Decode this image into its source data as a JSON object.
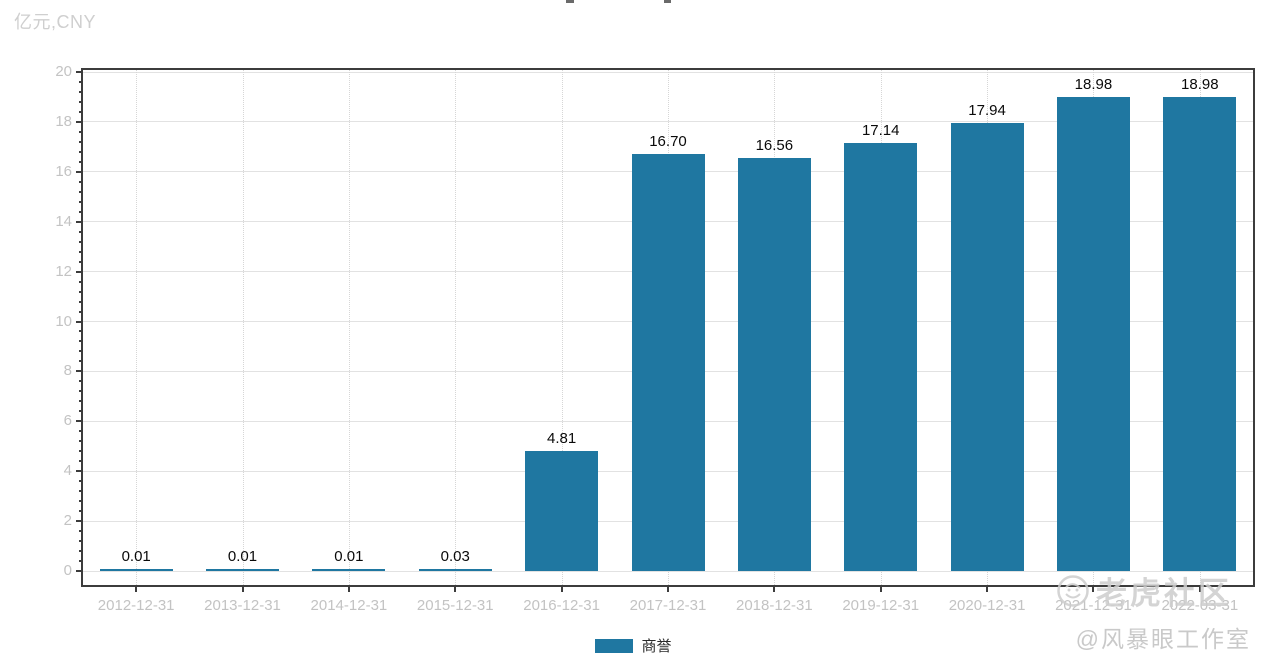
{
  "header": {
    "unit_label": "亿元,CNY"
  },
  "chart_data": {
    "type": "bar",
    "title": "",
    "categories": [
      "2012-12-31",
      "2013-12-31",
      "2014-12-31",
      "2015-12-31",
      "2016-12-31",
      "2017-12-31",
      "2018-12-31",
      "2019-12-31",
      "2020-12-31",
      "2021-12-31",
      "2022-03-31"
    ],
    "series": [
      {
        "name": "商誉",
        "values": [
          0.01,
          0.01,
          0.01,
          0.03,
          4.81,
          16.7,
          16.56,
          17.14,
          17.94,
          18.98,
          18.98
        ],
        "color": "#1f77a1"
      }
    ],
    "value_labels": [
      "0.01",
      "0.01",
      "0.01",
      "0.03",
      "4.81",
      "16.70",
      "16.56",
      "17.14",
      "17.94",
      "18.98",
      "18.98"
    ],
    "ylabel": "亿元,CNY",
    "xlabel": "",
    "ylim": [
      0,
      20
    ],
    "yticks": [
      0,
      2,
      4,
      6,
      8,
      10,
      12,
      14,
      16,
      18,
      20
    ],
    "grid": true,
    "legend_position": "bottom-center"
  },
  "legend": {
    "items": [
      {
        "label": "商誉",
        "color": "#1f77a1"
      }
    ]
  },
  "watermark": {
    "community": "老虎社区",
    "studio": "@风暴眼工作室"
  },
  "colors": {
    "bar": "#1f77a1",
    "axis_label": "#c3c3c3",
    "value_label": "#0a0a0a",
    "frame_border": "#3c3c3c"
  }
}
